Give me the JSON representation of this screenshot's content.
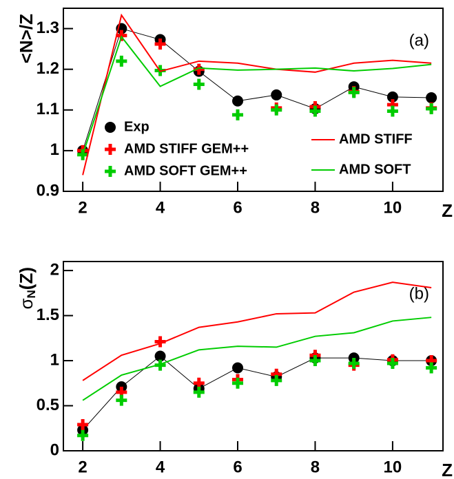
{
  "chart_data": [
    {
      "type": "scatter",
      "annotation": "(a)",
      "y_label": "<N>/Z",
      "x_label": "Z",
      "x": [
        2,
        3,
        4,
        5,
        6,
        7,
        8,
        9,
        10,
        11
      ],
      "xlim": [
        1.5,
        11.3
      ],
      "xticks": [
        2,
        4,
        6,
        8,
        10
      ],
      "ylim": [
        0.9,
        1.35
      ],
      "yticks": [
        0.9,
        1,
        1.1,
        1.2,
        1.3
      ],
      "series": [
        {
          "name": "Exp",
          "color": "#000000",
          "marker": "circle",
          "line": true,
          "values": [
            1.0,
            1.3,
            1.273,
            1.195,
            1.122,
            1.137,
            1.103,
            1.157,
            1.132,
            1.13
          ]
        },
        {
          "name": "AMD STIFF GEM++",
          "color": "#ff0000",
          "marker": "cross",
          "values": [
            1.0,
            1.283,
            1.262,
            1.2,
            null,
            1.105,
            1.108,
            1.145,
            1.113,
            1.105
          ]
        },
        {
          "name": "AMD SOFT GEM++",
          "color": "#00cc00",
          "marker": "cross",
          "values": [
            0.99,
            1.22,
            1.197,
            1.163,
            1.088,
            1.1,
            1.097,
            1.143,
            1.097,
            1.103
          ]
        },
        {
          "name": "AMD STIFF",
          "color": "#ff0000",
          "marker": "none",
          "line": true,
          "values": [
            0.94,
            1.333,
            1.195,
            1.22,
            1.215,
            1.2,
            1.193,
            1.215,
            1.222,
            1.215
          ]
        },
        {
          "name": "AMD SOFT",
          "color": "#00cc00",
          "marker": "none",
          "line": true,
          "values": [
            0.99,
            1.28,
            1.158,
            1.203,
            1.198,
            1.2,
            1.203,
            1.196,
            1.202,
            1.212
          ]
        }
      ]
    },
    {
      "type": "scatter",
      "annotation": "(b)",
      "y_label": "σ",
      "y_label_sub": "N",
      "y_label_suffix": "(Z)",
      "x_label": "Z",
      "x": [
        2,
        3,
        4,
        5,
        6,
        7,
        8,
        9,
        10,
        11
      ],
      "xlim": [
        1.5,
        11.3
      ],
      "xticks": [
        2,
        4,
        6,
        8,
        10
      ],
      "ylim": [
        0,
        2.1
      ],
      "yticks": [
        0,
        0.5,
        1,
        1.5,
        2
      ],
      "series": [
        {
          "color": "#000000",
          "marker": "circle",
          "line": true,
          "values": [
            0.23,
            0.71,
            1.05,
            0.69,
            0.92,
            0.82,
            1.03,
            1.03,
            1.0,
            1.0
          ]
        },
        {
          "color": "#ff0000",
          "marker": "cross",
          "values": [
            0.29,
            0.65,
            1.21,
            0.75,
            0.79,
            0.85,
            1.06,
            0.95,
            1.01,
            1.0
          ]
        },
        {
          "color": "#00cc00",
          "marker": "cross",
          "values": [
            0.17,
            0.56,
            0.95,
            0.65,
            0.75,
            0.78,
            1.0,
            0.97,
            0.97,
            0.92
          ]
        },
        {
          "color": "#ff0000",
          "marker": "none",
          "line": true,
          "values": [
            0.78,
            1.06,
            1.19,
            1.37,
            1.43,
            1.52,
            1.53,
            1.76,
            1.87,
            1.81
          ]
        },
        {
          "color": "#00cc00",
          "marker": "none",
          "line": true,
          "values": [
            0.56,
            0.84,
            0.96,
            1.12,
            1.16,
            1.15,
            1.27,
            1.31,
            1.44,
            1.48
          ]
        }
      ]
    }
  ]
}
